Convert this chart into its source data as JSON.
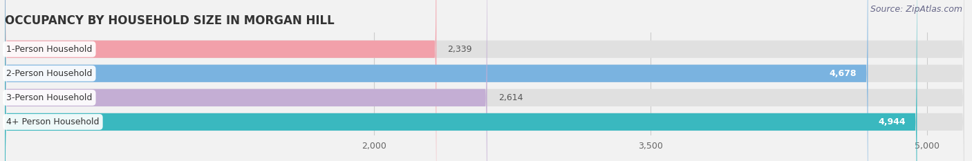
{
  "title": "OCCUPANCY BY HOUSEHOLD SIZE IN MORGAN HILL",
  "source": "Source: ZipAtlas.com",
  "categories": [
    "1-Person Household",
    "2-Person Household",
    "3-Person Household",
    "4+ Person Household"
  ],
  "values": [
    2339,
    4678,
    2614,
    4944
  ],
  "bar_colors": [
    "#f2a0aa",
    "#7ab3e0",
    "#c4aed4",
    "#3ab8bf"
  ],
  "background_color": "#f2f2f2",
  "bar_bg_color": "#e0e0e0",
  "xlim_min": 0,
  "xlim_max": 5200,
  "xticks": [
    2000,
    3500,
    5000
  ],
  "title_fontsize": 12,
  "label_fontsize": 9,
  "value_fontsize": 9,
  "source_fontsize": 9
}
